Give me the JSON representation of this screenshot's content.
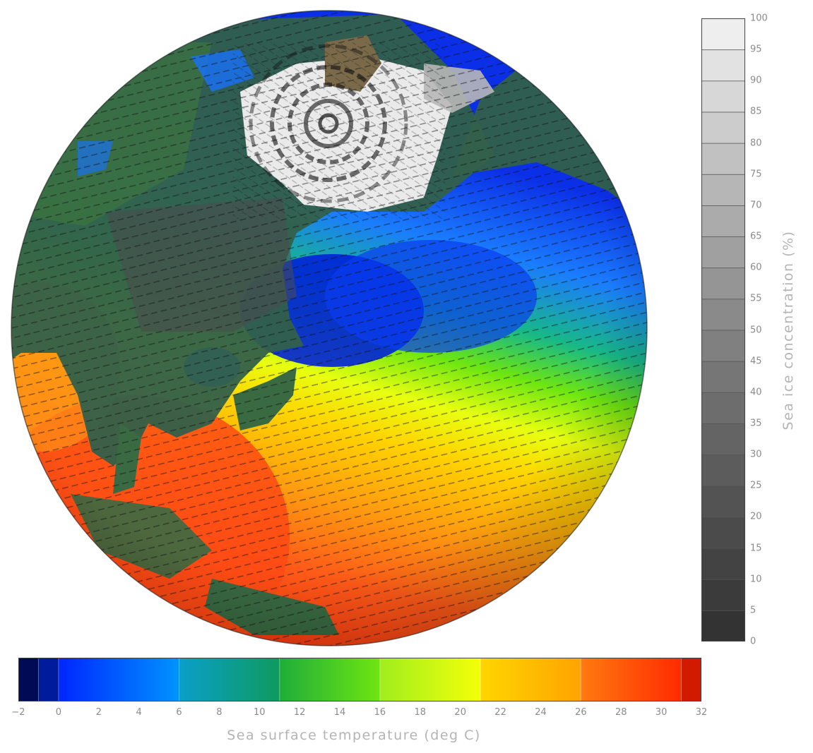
{
  "sea_ice_legend": {
    "title": "Sea ice concentration (%)",
    "ticks": [
      "0",
      "5",
      "10",
      "15",
      "20",
      "25",
      "30",
      "35",
      "40",
      "45",
      "50",
      "55",
      "60",
      "65",
      "70",
      "75",
      "80",
      "85",
      "90",
      "95",
      "100"
    ],
    "colors": [
      "#333333",
      "#3b3b3b",
      "#434343",
      "#4b4b4b",
      "#535353",
      "#5c5c5c",
      "#646464",
      "#6d6d6d",
      "#767676",
      "#808080",
      "#8a8a8a",
      "#959595",
      "#a0a0a0",
      "#ababab",
      "#b6b6b6",
      "#c1c1c1",
      "#cccccc",
      "#d7d7d7",
      "#e2e2e2",
      "#eeeeee"
    ]
  },
  "sst_legend": {
    "title": "Sea surface temperature (deg C)",
    "ticks": [
      "−2",
      "0",
      "2",
      "4",
      "6",
      "8",
      "10",
      "12",
      "14",
      "16",
      "18",
      "20",
      "22",
      "24",
      "26",
      "28",
      "30",
      "32"
    ],
    "segments": [
      {
        "from": -2,
        "to": -1,
        "color_a": "#000a55",
        "color_b": "#000a55"
      },
      {
        "from": -1,
        "to": 0,
        "color_a": "#001b9c",
        "color_b": "#001b9c"
      },
      {
        "from": 0,
        "to": 6,
        "color_a": "#0026ff",
        "color_b": "#0093ff"
      },
      {
        "from": 6,
        "to": 11,
        "color_a": "#0a9fc9",
        "color_b": "#0f9a5e"
      },
      {
        "from": 11,
        "to": 16,
        "color_a": "#1fad3a",
        "color_b": "#6ee611"
      },
      {
        "from": 16,
        "to": 21,
        "color_a": "#a0ee1e",
        "color_b": "#f4ff08"
      },
      {
        "from": 21,
        "to": 26,
        "color_a": "#ffd600",
        "color_b": "#ffa300"
      },
      {
        "from": 26,
        "to": 31,
        "color_a": "#ff7a10",
        "color_b": "#ff2a00"
      },
      {
        "from": 31,
        "to": 32,
        "color_a": "#d11a00",
        "color_b": "#d11a00"
      }
    ]
  },
  "colors": {
    "ocean_polar": "#0018c8",
    "ocean_cold": "#1a7cff",
    "ocean_mid": "#18c07a",
    "ocean_warm": "#ffd300",
    "ocean_tropical": "#ff3a10",
    "land_dark": "#2f5a46",
    "land_mid": "#3f7a3a",
    "sea_ice": "#e8e8e8",
    "greenland": "#7a6a4a"
  }
}
